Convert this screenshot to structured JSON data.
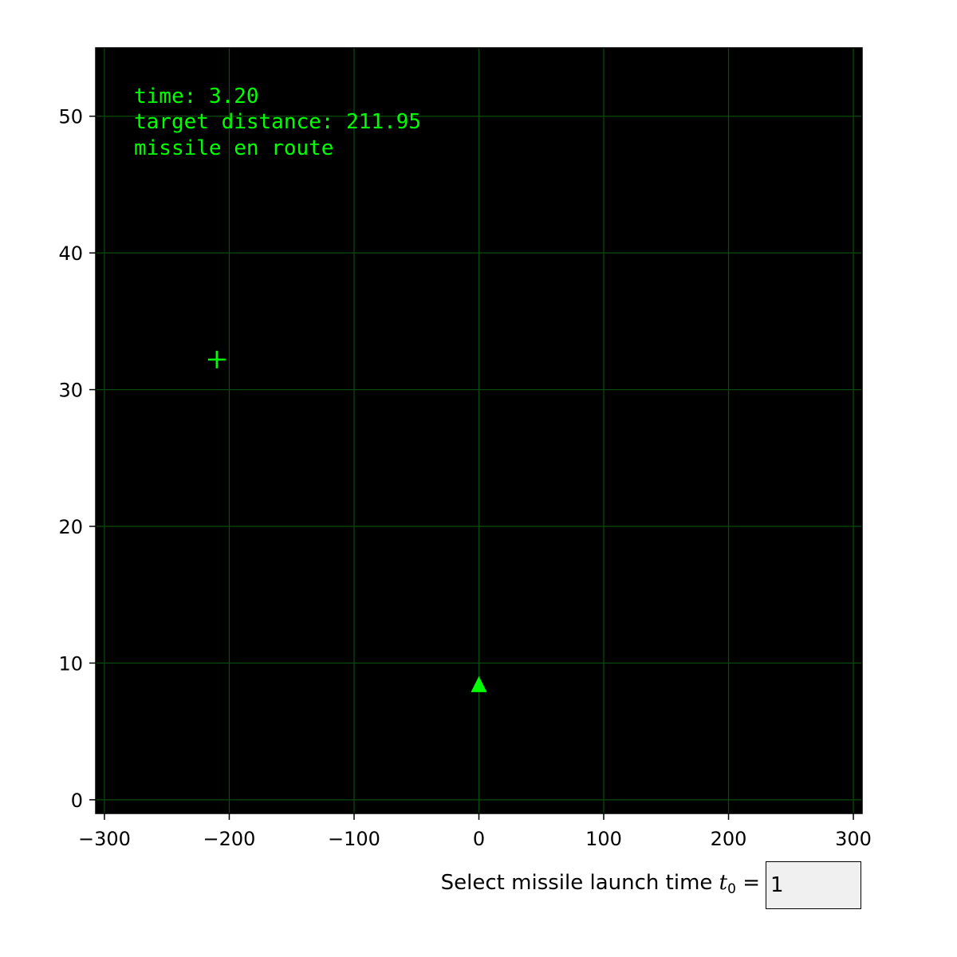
{
  "colors": {
    "accent": "#00ff00",
    "plot_background": "#000000",
    "grid": "#0b4d0b"
  },
  "status": {
    "time_line": "time: 3.20",
    "distance_line": "target distance: 211.95",
    "state_line": "missile en route"
  },
  "launch_input": {
    "label_prefix": "Select missile launch time ",
    "label_var": "t",
    "label_sub": "0",
    "label_suffix": " =",
    "value": "1"
  },
  "chart_data": {
    "type": "scatter",
    "xlim": [
      -307,
      307
    ],
    "ylim": [
      -1,
      55
    ],
    "xticks": [
      -300,
      -200,
      -100,
      0,
      100,
      200,
      300
    ],
    "xtick_labels": [
      "−300",
      "−200",
      "−100",
      "0",
      "100",
      "200",
      "300"
    ],
    "yticks": [
      0,
      10,
      20,
      30,
      40,
      50
    ],
    "ytick_labels": [
      "0",
      "10",
      "20",
      "30",
      "40",
      "50"
    ],
    "grid": true,
    "points": [
      {
        "marker": "plus",
        "x": -210,
        "y": 32.2
      },
      {
        "marker": "triangle",
        "x": 0,
        "y": 8.4
      }
    ]
  }
}
